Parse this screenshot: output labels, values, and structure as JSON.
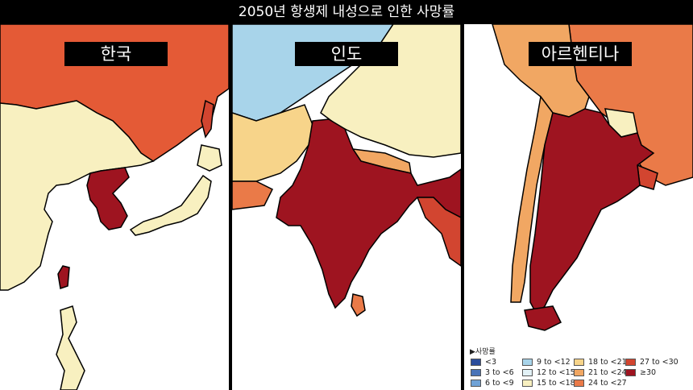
{
  "title": "2050년 항생제 내성으로 인한 사망률",
  "panels": {
    "korea": {
      "label": "한국",
      "fill_color": "#9e1420"
    },
    "india": {
      "label": "인도",
      "fill_color": "#9e1420"
    },
    "argentina": {
      "label": "아르헨티나",
      "fill_color": "#9e1420"
    }
  },
  "legend": {
    "title": "▶사망률",
    "items": [
      {
        "label": "<3",
        "color": "#2b4d9c"
      },
      {
        "label": "3 to <6",
        "color": "#4a74b8"
      },
      {
        "label": "6 to <9",
        "color": "#6fa2d6"
      },
      {
        "label": "9 to <12",
        "color": "#a8d4ea"
      },
      {
        "label": "12 to <15",
        "color": "#e2f1f6"
      },
      {
        "label": "15 to <18",
        "color": "#f8f0c0"
      },
      {
        "label": "18 to <21",
        "color": "#f7d48a"
      },
      {
        "label": "21 to <24",
        "color": "#f1a763"
      },
      {
        "label": "24 to <27",
        "color": "#ea7a48"
      },
      {
        "label": "27 to <30",
        "color": "#d24530"
      },
      {
        "label": "≥30",
        "color": "#9e1420"
      }
    ]
  }
}
